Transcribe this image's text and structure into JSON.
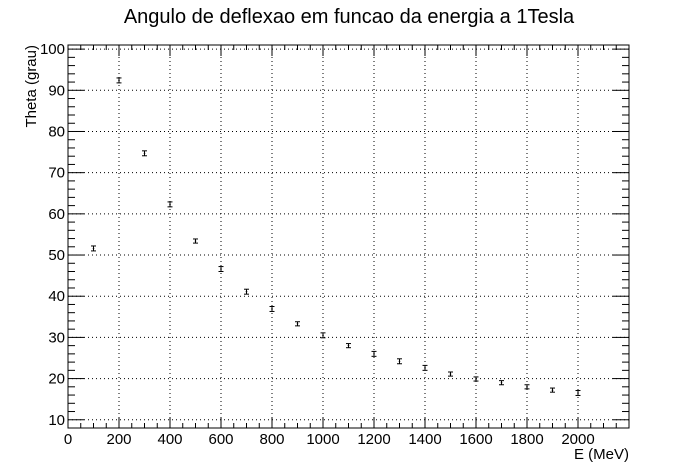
{
  "chart_data": {
    "type": "scatter",
    "title": "Angulo de deflexao em funcao da energia a 1Tesla",
    "xlabel": "E (MeV)",
    "ylabel": "Theta (grau)",
    "xlim": [
      0,
      2200
    ],
    "ylim": [
      8,
      101
    ],
    "x_ticks": [
      "0",
      "200",
      "400",
      "600",
      "800",
      "1000",
      "1200",
      "1400",
      "1600",
      "1800",
      "2000"
    ],
    "y_ticks": [
      "10",
      "20",
      "30",
      "40",
      "50",
      "60",
      "70",
      "80",
      "90",
      "100"
    ],
    "grid": true,
    "points": [
      {
        "x": 100,
        "y": 51.6,
        "err": 0.6
      },
      {
        "x": 200,
        "y": 92.4,
        "err": 0.6
      },
      {
        "x": 300,
        "y": 74.7,
        "err": 0.6
      },
      {
        "x": 400,
        "y": 62.3,
        "err": 0.6
      },
      {
        "x": 500,
        "y": 53.4,
        "err": 0.5
      },
      {
        "x": 600,
        "y": 46.6,
        "err": 0.6
      },
      {
        "x": 700,
        "y": 41.1,
        "err": 0.6
      },
      {
        "x": 800,
        "y": 36.9,
        "err": 0.6
      },
      {
        "x": 900,
        "y": 33.3,
        "err": 0.5
      },
      {
        "x": 1000,
        "y": 30.5,
        "err": 0.6
      },
      {
        "x": 1100,
        "y": 28.0,
        "err": 0.5
      },
      {
        "x": 1200,
        "y": 26.0,
        "err": 0.6
      },
      {
        "x": 1300,
        "y": 24.2,
        "err": 0.6
      },
      {
        "x": 1400,
        "y": 22.6,
        "err": 0.6
      },
      {
        "x": 1500,
        "y": 21.1,
        "err": 0.5
      },
      {
        "x": 1600,
        "y": 19.9,
        "err": 0.5
      },
      {
        "x": 1700,
        "y": 19.0,
        "err": 0.5
      },
      {
        "x": 1800,
        "y": 18.0,
        "err": 0.5
      },
      {
        "x": 1900,
        "y": 17.2,
        "err": 0.5
      },
      {
        "x": 2000,
        "y": 16.5,
        "err": 0.6
      }
    ]
  }
}
